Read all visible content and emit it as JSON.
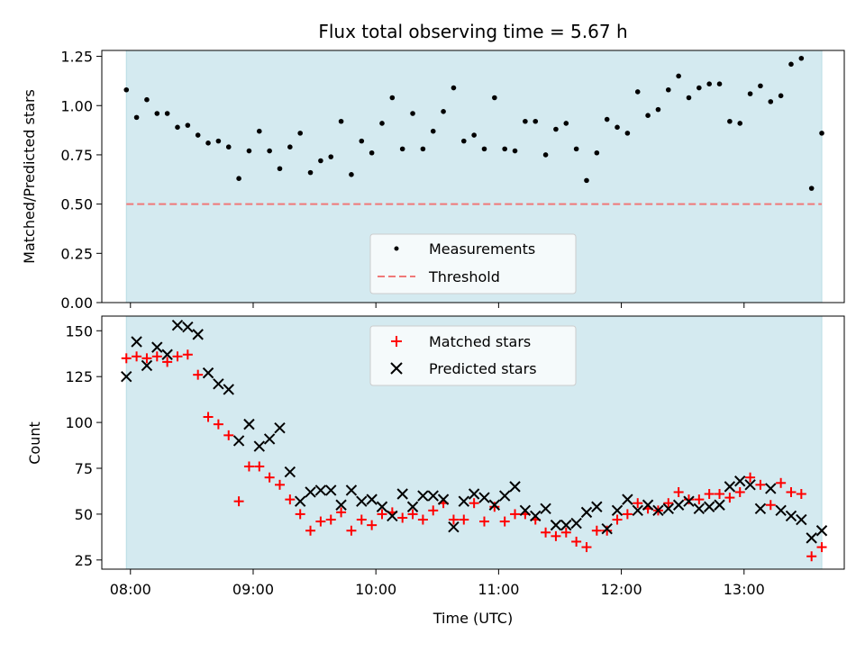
{
  "chart_data": [
    {
      "type": "scatter",
      "title": "Flux total observing time = 5.67 h",
      "ylabel": "Matched/Predicted stars",
      "ylim": [
        0,
        1.28
      ],
      "yticks": [
        "0.00",
        "0.25",
        "0.50",
        "0.75",
        "1.00",
        "1.25"
      ],
      "legend": "bottom-center",
      "colors": {
        "observing_window": "#d4eaf0",
        "measurements": "#000000",
        "threshold": "#f07878"
      },
      "series": [
        {
          "name": "Measurements",
          "x": [
            "07:58",
            "08:03",
            "08:08",
            "08:13",
            "08:18",
            "08:23",
            "08:28",
            "08:33",
            "08:38",
            "08:43",
            "08:48",
            "08:53",
            "08:58",
            "09:03",
            "09:08",
            "09:13",
            "09:18",
            "09:23",
            "09:28",
            "09:33",
            "09:38",
            "09:43",
            "09:48",
            "09:53",
            "09:58",
            "10:03",
            "10:08",
            "10:13",
            "10:18",
            "10:23",
            "10:28",
            "10:33",
            "10:38",
            "10:43",
            "10:48",
            "10:53",
            "10:58",
            "11:03",
            "11:08",
            "11:13",
            "11:18",
            "11:23",
            "11:28",
            "11:33",
            "11:38",
            "11:43",
            "11:48",
            "11:53",
            "11:58",
            "12:03",
            "12:08",
            "12:13",
            "12:18",
            "12:23",
            "12:28",
            "12:33",
            "12:38",
            "12:43",
            "12:48",
            "12:53",
            "12:58",
            "13:03",
            "13:08",
            "13:13",
            "13:18",
            "13:23",
            "13:28",
            "13:33",
            "13:38"
          ],
          "y": [
            1.08,
            0.94,
            1.03,
            0.96,
            0.96,
            0.89,
            0.9,
            0.85,
            0.81,
            0.82,
            0.79,
            0.63,
            0.77,
            0.87,
            0.77,
            0.68,
            0.79,
            0.86,
            0.66,
            0.72,
            0.74,
            0.92,
            0.65,
            0.82,
            0.76,
            0.91,
            1.04,
            0.78,
            0.96,
            0.78,
            0.87,
            0.97,
            1.09,
            0.82,
            0.85,
            0.78,
            1.04,
            0.78,
            0.77,
            0.92,
            0.92,
            0.75,
            0.88,
            0.91,
            0.78,
            0.62,
            0.76,
            0.93,
            0.89,
            0.86,
            1.07,
            0.95,
            0.98,
            1.08,
            1.15,
            1.04,
            1.09,
            1.11,
            1.11,
            0.92,
            0.91,
            1.06,
            1.1,
            1.02,
            1.05,
            1.21,
            1.24,
            0.58,
            0.86
          ]
        },
        {
          "name": "Threshold",
          "value": 0.5
        }
      ]
    },
    {
      "type": "scatter",
      "xlabel": "Time (UTC)",
      "ylabel": "Count",
      "ylim": [
        20,
        158
      ],
      "yticks": [
        "25",
        "50",
        "75",
        "100",
        "125",
        "150"
      ],
      "xticks": [
        "08:00",
        "09:00",
        "10:00",
        "11:00",
        "12:00",
        "13:00"
      ],
      "observing_window": [
        "07:58",
        "13:38"
      ],
      "legend": "top-center",
      "colors": {
        "observing_window": "#d4eaf0",
        "matched": "#ff0000",
        "predicted": "#000000"
      },
      "series": [
        {
          "name": "Matched stars",
          "x": [
            "07:58",
            "08:03",
            "08:08",
            "08:13",
            "08:18",
            "08:23",
            "08:28",
            "08:33",
            "08:38",
            "08:43",
            "08:48",
            "08:53",
            "08:58",
            "09:03",
            "09:08",
            "09:13",
            "09:18",
            "09:23",
            "09:28",
            "09:33",
            "09:38",
            "09:43",
            "09:48",
            "09:53",
            "09:58",
            "10:03",
            "10:08",
            "10:13",
            "10:18",
            "10:23",
            "10:28",
            "10:33",
            "10:38",
            "10:43",
            "10:48",
            "10:53",
            "10:58",
            "11:03",
            "11:08",
            "11:13",
            "11:18",
            "11:23",
            "11:28",
            "11:33",
            "11:38",
            "11:43",
            "11:48",
            "11:53",
            "11:58",
            "12:03",
            "12:08",
            "12:13",
            "12:18",
            "12:23",
            "12:28",
            "12:33",
            "12:38",
            "12:43",
            "12:48",
            "12:53",
            "12:58",
            "13:03",
            "13:08",
            "13:13",
            "13:18",
            "13:23",
            "13:28",
            "13:33",
            "13:38"
          ],
          "y": [
            135,
            136,
            135,
            136,
            133,
            136,
            137,
            126,
            103,
            99,
            93,
            57,
            76,
            76,
            70,
            66,
            58,
            50,
            41,
            46,
            47,
            51,
            41,
            47,
            44,
            50,
            51,
            48,
            50,
            47,
            52,
            56,
            47,
            47,
            56,
            46,
            54,
            46,
            50,
            50,
            47,
            40,
            38,
            40,
            35,
            32,
            41,
            41,
            47,
            50,
            56,
            53,
            52,
            56,
            62,
            58,
            58,
            61,
            61,
            59,
            62,
            70,
            66,
            55,
            67,
            62,
            61,
            27,
            32
          ]
        },
        {
          "name": "Predicted stars",
          "x": [
            "07:58",
            "08:03",
            "08:08",
            "08:13",
            "08:18",
            "08:23",
            "08:28",
            "08:33",
            "08:38",
            "08:43",
            "08:48",
            "08:53",
            "08:58",
            "09:03",
            "09:08",
            "09:13",
            "09:18",
            "09:23",
            "09:28",
            "09:33",
            "09:38",
            "09:43",
            "09:48",
            "09:53",
            "09:58",
            "10:03",
            "10:08",
            "10:13",
            "10:18",
            "10:23",
            "10:28",
            "10:33",
            "10:38",
            "10:43",
            "10:48",
            "10:53",
            "10:58",
            "11:03",
            "11:08",
            "11:13",
            "11:18",
            "11:23",
            "11:28",
            "11:33",
            "11:38",
            "11:43",
            "11:48",
            "11:53",
            "11:58",
            "12:03",
            "12:08",
            "12:13",
            "12:18",
            "12:23",
            "12:28",
            "12:33",
            "12:38",
            "12:43",
            "12:48",
            "12:53",
            "12:58",
            "13:03",
            "13:08",
            "13:13",
            "13:18",
            "13:23",
            "13:28",
            "13:33",
            "13:38"
          ],
          "y": [
            125,
            144,
            131,
            141,
            137,
            153,
            152,
            148,
            127,
            121,
            118,
            90,
            99,
            87,
            91,
            97,
            73,
            57,
            62,
            63,
            63,
            55,
            63,
            57,
            58,
            54,
            49,
            61,
            54,
            60,
            60,
            58,
            43,
            57,
            61,
            59,
            55,
            60,
            65,
            52,
            49,
            53,
            44,
            44,
            45,
            51,
            54,
            42,
            52,
            58,
            52,
            55,
            52,
            53,
            55,
            57,
            53,
            54,
            55,
            65,
            68,
            66,
            53,
            64,
            52,
            49,
            47,
            37,
            41
          ]
        }
      ]
    }
  ]
}
